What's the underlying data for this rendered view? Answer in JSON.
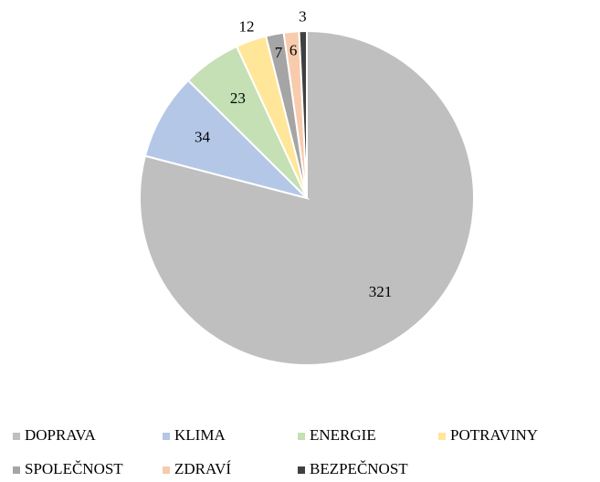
{
  "chart_data": {
    "type": "pie",
    "categories": [
      "DOPRAVA",
      "KLIMA",
      "ENERGIE",
      "POTRAVINY",
      "SPOLEČNOST",
      "ZDRAVÍ",
      "BEZPEČNOST"
    ],
    "values": [
      321,
      34,
      23,
      12,
      7,
      6,
      3
    ],
    "colors": [
      "#bfbfbf",
      "#b4c7e7",
      "#c5e0b4",
      "#ffe699",
      "#a5a5a5",
      "#f8cbad",
      "#404040"
    ],
    "legend": "bottom"
  }
}
